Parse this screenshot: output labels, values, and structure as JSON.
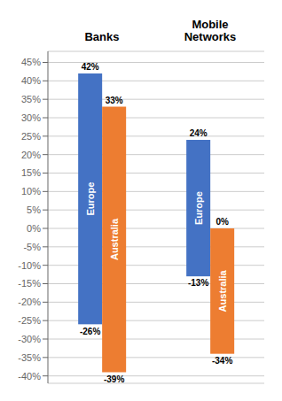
{
  "chart_data": {
    "type": "bar",
    "categories": [
      "Banks",
      "Mobile\nNetworks"
    ],
    "series": [
      {
        "name": "Europe",
        "color": "#4472C4",
        "values": [
          42,
          24
        ],
        "value_labels": [
          "42%",
          "24%"
        ],
        "bottoms": [
          -26,
          -13
        ],
        "bottom_labels": [
          "-26%",
          "-13%"
        ]
      },
      {
        "name": "Australia",
        "color": "#ED7D31",
        "values": [
          33,
          0
        ],
        "value_labels": [
          "33%",
          "0%"
        ],
        "bottoms": [
          -39,
          -34
        ],
        "bottom_labels": [
          "-39%",
          "-34%"
        ]
      }
    ],
    "ylim": [
      -42,
      48
    ],
    "yticks": [
      {
        "value": -40,
        "label": "-40%"
      },
      {
        "value": -35,
        "label": "-35%"
      },
      {
        "value": -30,
        "label": "-30%"
      },
      {
        "value": -25,
        "label": "-25%"
      },
      {
        "value": -20,
        "label": "-20%"
      },
      {
        "value": -15,
        "label": "-15%"
      },
      {
        "value": -10,
        "label": "-10%"
      },
      {
        "value": -5,
        "label": "-5%"
      },
      {
        "value": 0,
        "label": "0%"
      },
      {
        "value": 5,
        "label": "5%"
      },
      {
        "value": 10,
        "label": "10%"
      },
      {
        "value": 15,
        "label": "15%"
      },
      {
        "value": 20,
        "label": "20%"
      },
      {
        "value": 25,
        "label": "25%"
      },
      {
        "value": 30,
        "label": "30%"
      },
      {
        "value": 35,
        "label": "35%"
      },
      {
        "value": 40,
        "label": "40%"
      },
      {
        "value": 45,
        "label": "45%"
      }
    ],
    "grid": true,
    "data_labels": true
  }
}
